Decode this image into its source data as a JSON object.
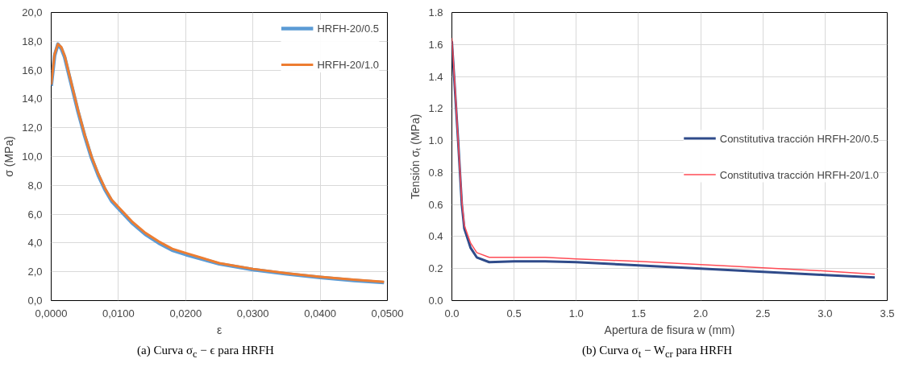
{
  "chart_data": [
    {
      "type": "line",
      "xlabel": "ε",
      "ylabel": "σ (MPa)",
      "annotations": [
        "(a) Curva σ$_{c}$ − ϵ para HRFH"
      ],
      "xlim": [
        0,
        0.05
      ],
      "ylim": [
        0,
        20
      ],
      "xticks": [
        {
          "value": 0,
          "label": "0,0000"
        },
        {
          "value": 0.01,
          "label": "0,0100"
        },
        {
          "value": 0.02,
          "label": "0,0200"
        },
        {
          "value": 0.03,
          "label": "0,0300"
        },
        {
          "value": 0.04,
          "label": "0,0400"
        },
        {
          "value": 0.05,
          "label": "0,0500"
        }
      ],
      "yticks": [
        {
          "value": 0,
          "label": "0,0"
        },
        {
          "value": 2,
          "label": "2,0"
        },
        {
          "value": 4,
          "label": "4,0"
        },
        {
          "value": 6,
          "label": "6,0"
        },
        {
          "value": 8,
          "label": "8,0"
        },
        {
          "value": 10,
          "label": "10,0"
        },
        {
          "value": 12,
          "label": "12,0"
        },
        {
          "value": 14,
          "label": "14,0"
        },
        {
          "value": 16,
          "label": "16,0"
        },
        {
          "value": 18,
          "label": "18,0"
        },
        {
          "value": 20,
          "label": "20,0"
        }
      ],
      "grid": true,
      "legend": "top right",
      "marker": "none",
      "line_style": "solid",
      "x": [
        0,
        0.0005,
        0.001,
        0.0015,
        0.002,
        0.003,
        0.004,
        0.005,
        0.006,
        0.007,
        0.008,
        0.009,
        0.01,
        0.012,
        0.014,
        0.016,
        0.018,
        0.02,
        0.025,
        0.03,
        0.035,
        0.04,
        0.045,
        0.0495
      ],
      "series": [
        {
          "name": "HRFH-20/0.5",
          "color": "#5b9bd5",
          "values": [
            14.9,
            17.0,
            17.8,
            17.5,
            16.9,
            15.0,
            13.1,
            11.4,
            9.9,
            8.7,
            7.7,
            6.9,
            6.4,
            5.4,
            4.6,
            4.0,
            3.5,
            3.2,
            2.55,
            2.15,
            1.85,
            1.6,
            1.4,
            1.25
          ]
        },
        {
          "name": "HRFH-20/1.0",
          "color": "#ed7d31",
          "values": [
            15.0,
            17.1,
            17.8,
            17.6,
            17.0,
            15.1,
            13.2,
            11.5,
            10.0,
            8.8,
            7.8,
            7.0,
            6.5,
            5.5,
            4.7,
            4.1,
            3.6,
            3.3,
            2.6,
            2.2,
            1.9,
            1.65,
            1.45,
            1.3
          ]
        }
      ]
    },
    {
      "type": "line",
      "xlabel": "Apertura de fisura w (mm)",
      "ylabel": "Tensión σₜ (MPa)",
      "annotations": [
        "(b) Curva σ$_{t}$ − W$_{cr}$ para HRFH"
      ],
      "xlim": [
        0,
        3.5
      ],
      "ylim": [
        0,
        1.8
      ],
      "xticks": [
        {
          "value": 0,
          "label": "0.0"
        },
        {
          "value": 0.5,
          "label": "0.5"
        },
        {
          "value": 1,
          "label": "1.0"
        },
        {
          "value": 1.5,
          "label": "1.5"
        },
        {
          "value": 2,
          "label": "2.0"
        },
        {
          "value": 2.5,
          "label": "2.5"
        },
        {
          "value": 3,
          "label": "3.0"
        },
        {
          "value": 3.5,
          "label": "3.5"
        }
      ],
      "yticks": [
        {
          "value": 0,
          "label": "0.0"
        },
        {
          "value": 0.2,
          "label": "0.2"
        },
        {
          "value": 0.4,
          "label": "0.4"
        },
        {
          "value": 0.6,
          "label": "0.6"
        },
        {
          "value": 0.8,
          "label": "0.8"
        },
        {
          "value": 1,
          "label": "1.0"
        },
        {
          "value": 1.2,
          "label": "1.2"
        },
        {
          "value": 1.4,
          "label": "1.4"
        },
        {
          "value": 1.6,
          "label": "1.6"
        },
        {
          "value": 1.8,
          "label": "1.8"
        }
      ],
      "grid": true,
      "legend": "right",
      "marker": "none",
      "line_style": "solid",
      "x": [
        0,
        0.03,
        0.05,
        0.08,
        0.1,
        0.15,
        0.2,
        0.3,
        0.5,
        0.75,
        1.0,
        1.5,
        2.0,
        2.5,
        3.0,
        3.4
      ],
      "series": [
        {
          "name": "Constitutiva tracción HRFH-20/0.5",
          "color": "#2f4b8a",
          "values": [
            1.62,
            1.25,
            1.0,
            0.6,
            0.45,
            0.33,
            0.27,
            0.24,
            0.245,
            0.245,
            0.24,
            0.22,
            0.2,
            0.18,
            0.16,
            0.145
          ]
        },
        {
          "name": "Constitutiva tracción HRFH-20/1.0",
          "color": "#ff4b55",
          "values": [
            1.64,
            1.27,
            1.0,
            0.62,
            0.47,
            0.36,
            0.3,
            0.27,
            0.27,
            0.27,
            0.26,
            0.245,
            0.225,
            0.205,
            0.185,
            0.165
          ]
        }
      ]
    }
  ]
}
